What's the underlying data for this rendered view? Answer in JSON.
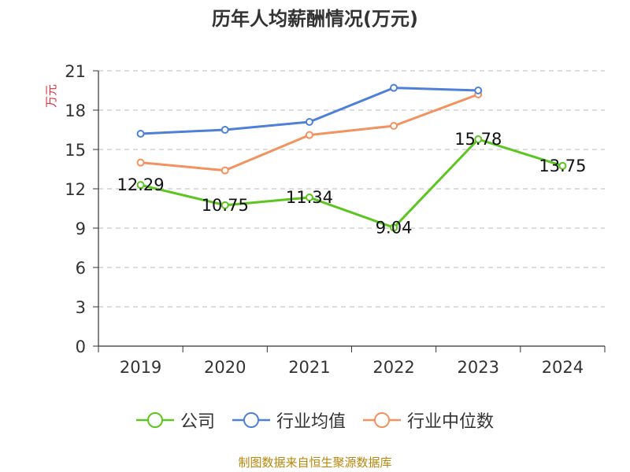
{
  "chart_data": {
    "type": "line",
    "title": "历年人均薪酬情况(万元)",
    "ylabel": "万元",
    "xlabel": "",
    "ylim": [
      0,
      21
    ],
    "yticks": [
      0,
      3,
      6,
      9,
      12,
      15,
      18,
      21
    ],
    "categories": [
      "2019",
      "2020",
      "2021",
      "2022",
      "2023",
      "2024"
    ],
    "grid": true,
    "legend_position": "bottom",
    "series": [
      {
        "name": "公司",
        "color": "#5cc520",
        "values": [
          12.29,
          10.75,
          11.34,
          9.04,
          15.78,
          13.75
        ],
        "labels": [
          "12.29",
          "10.75",
          "11.34",
          "9.04",
          "15.78",
          "13.75"
        ]
      },
      {
        "name": "行业均值",
        "color": "#4f80d9",
        "values": [
          16.2,
          16.5,
          17.1,
          19.7,
          19.5,
          null
        ]
      },
      {
        "name": "行业中位数",
        "color": "#f3925e",
        "values": [
          14.0,
          13.4,
          16.1,
          16.8,
          19.2,
          null
        ]
      }
    ]
  },
  "source": "制图数据来自恒生聚源数据库"
}
